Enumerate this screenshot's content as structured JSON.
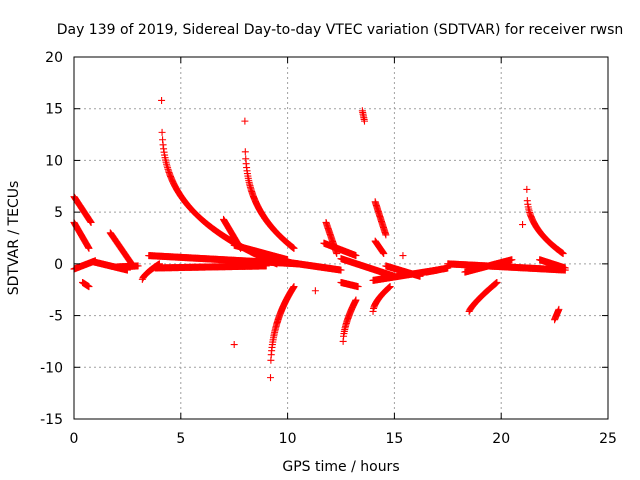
{
  "chart_data": {
    "type": "scatter",
    "title": "Day 139 of 2019, Sidereal Day-to-day VTEC variation (SDTVAR) for receiver rwsn",
    "xlabel": "GPS time / hours",
    "ylabel": "SDTVAR / TECUs",
    "xlim": [
      0,
      25
    ],
    "ylim": [
      -15,
      20
    ],
    "xticks": [
      0,
      5,
      10,
      15,
      20,
      25
    ],
    "yticks": [
      -15,
      -10,
      -5,
      0,
      5,
      10,
      15,
      20
    ],
    "xtick_labels": [
      "0",
      "5",
      "10",
      "15",
      "20",
      "25"
    ],
    "ytick_labels": [
      "-15",
      "-10",
      "-5",
      "0",
      "5",
      "10",
      "15",
      "20"
    ],
    "grid": true,
    "marker": "+",
    "color": "#ff0000",
    "series_arcs": [
      {
        "name": "arc-1",
        "x0": 0.0,
        "x1": 0.8,
        "y0": 6.5,
        "y1": 4.0,
        "curve": 1.0
      },
      {
        "name": "arc-2",
        "x0": 0.0,
        "x1": 0.7,
        "y0": 4.0,
        "y1": 1.5,
        "curve": 1.0
      },
      {
        "name": "arc-3",
        "x0": 0.0,
        "x1": 1.0,
        "y0": -0.5,
        "y1": 0.3,
        "curve": 1.0
      },
      {
        "name": "arc-4",
        "x0": 0.9,
        "x1": 2.5,
        "y0": 0.2,
        "y1": -0.6,
        "curve": 1.0
      },
      {
        "name": "arc-5",
        "x0": 0.4,
        "x1": 0.7,
        "y0": -1.8,
        "y1": -2.2,
        "curve": 1.0
      },
      {
        "name": "arc-6",
        "x0": 1.7,
        "x1": 2.7,
        "y0": 3.0,
        "y1": 0.0,
        "curve": 1.0
      },
      {
        "name": "arc-7",
        "x0": 2.0,
        "x1": 3.0,
        "y0": -0.3,
        "y1": -0.2,
        "curve": 1.0
      },
      {
        "name": "arc-8",
        "x0": 3.2,
        "x1": 4.0,
        "y0": -1.5,
        "y1": 0.0,
        "curve": 0.7
      },
      {
        "name": "arc-9",
        "x0": 3.5,
        "x1": 10.5,
        "y0": 0.8,
        "y1": 0.0,
        "curve": 1.0
      },
      {
        "name": "arc-10",
        "x0": 3.8,
        "x1": 9.0,
        "y0": -0.4,
        "y1": -0.2,
        "curve": 1.0
      },
      {
        "name": "arc-11",
        "x0": 4.1,
        "x1": 9.5,
        "y0": 15.8,
        "y1": 0.0,
        "curve": 0.3
      },
      {
        "name": "arc-12",
        "x0": 7.0,
        "x1": 7.8,
        "y0": 4.3,
        "y1": 1.5,
        "curve": 1.0
      },
      {
        "name": "arc-13",
        "x0": 7.5,
        "x1": 10.0,
        "y0": 1.8,
        "y1": 0.4,
        "curve": 1.0
      },
      {
        "name": "arc-14",
        "x0": 8.0,
        "x1": 10.3,
        "y0": 13.8,
        "y1": 1.5,
        "curve": 0.3
      },
      {
        "name": "arc-15",
        "x0": 9.2,
        "x1": 10.3,
        "y0": -11.0,
        "y1": -2.2,
        "curve": 0.4
      },
      {
        "name": "arc-16",
        "x0": 9.5,
        "x1": 12.5,
        "y0": 0.3,
        "y1": -0.6,
        "curve": 1.0
      },
      {
        "name": "arc-17",
        "x0": 11.8,
        "x1": 12.3,
        "y0": 4.0,
        "y1": 1.0,
        "curve": 1.0
      },
      {
        "name": "arc-18",
        "x0": 11.7,
        "x1": 13.2,
        "y0": 2.0,
        "y1": 0.8,
        "curve": 1.0
      },
      {
        "name": "arc-19",
        "x0": 12.5,
        "x1": 15.0,
        "y0": 0.5,
        "y1": -1.2,
        "curve": 1.0
      },
      {
        "name": "arc-20",
        "x0": 12.5,
        "x1": 13.3,
        "y0": -1.8,
        "y1": -2.2,
        "curve": 1.0
      },
      {
        "name": "arc-21",
        "x0": 12.6,
        "x1": 13.2,
        "y0": -7.5,
        "y1": -3.5,
        "curve": 0.6
      },
      {
        "name": "arc-22",
        "x0": 13.5,
        "x1": 13.6,
        "y0": 14.8,
        "y1": 13.8,
        "curve": 1.0
      },
      {
        "name": "arc-23",
        "x0": 14.1,
        "x1": 14.6,
        "y0": 6.0,
        "y1": 2.8,
        "curve": 1.0
      },
      {
        "name": "arc-24",
        "x0": 14.1,
        "x1": 14.5,
        "y0": 2.2,
        "y1": 1.0,
        "curve": 1.0
      },
      {
        "name": "arc-25",
        "x0": 14.0,
        "x1": 14.8,
        "y0": -4.6,
        "y1": -2.2,
        "curve": 0.6
      },
      {
        "name": "arc-26",
        "x0": 14.0,
        "x1": 17.0,
        "y0": -1.6,
        "y1": -0.6,
        "curve": 1.0
      },
      {
        "name": "arc-27",
        "x0": 14.6,
        "x1": 16.2,
        "y0": -0.2,
        "y1": -1.2,
        "curve": 1.0
      },
      {
        "name": "arc-28",
        "x0": 16.5,
        "x1": 17.5,
        "y0": -0.8,
        "y1": -0.4,
        "curve": 1.0
      },
      {
        "name": "arc-29",
        "x0": 17.5,
        "x1": 23.0,
        "y0": 0.0,
        "y1": -0.6,
        "curve": 1.0
      },
      {
        "name": "arc-30",
        "x0": 18.3,
        "x1": 20.5,
        "y0": -0.8,
        "y1": 0.4,
        "curve": 1.0
      },
      {
        "name": "arc-31",
        "x0": 18.5,
        "x1": 19.8,
        "y0": -4.6,
        "y1": -1.8,
        "curve": 0.8
      },
      {
        "name": "arc-32",
        "x0": 21.2,
        "x1": 22.9,
        "y0": 7.2,
        "y1": 1.0,
        "curve": 0.4
      },
      {
        "name": "arc-33",
        "x0": 22.5,
        "x1": 22.7,
        "y0": -5.4,
        "y1": -4.4,
        "curve": 1.0
      },
      {
        "name": "arc-34",
        "x0": 21.8,
        "x1": 23.0,
        "y0": 0.4,
        "y1": -0.4,
        "curve": 1.0
      }
    ],
    "isolated_points": [
      {
        "x": 7.5,
        "y": -7.8
      },
      {
        "x": 11.3,
        "y": -2.6
      },
      {
        "x": 21.0,
        "y": 3.8
      },
      {
        "x": 15.4,
        "y": 0.8
      }
    ]
  }
}
